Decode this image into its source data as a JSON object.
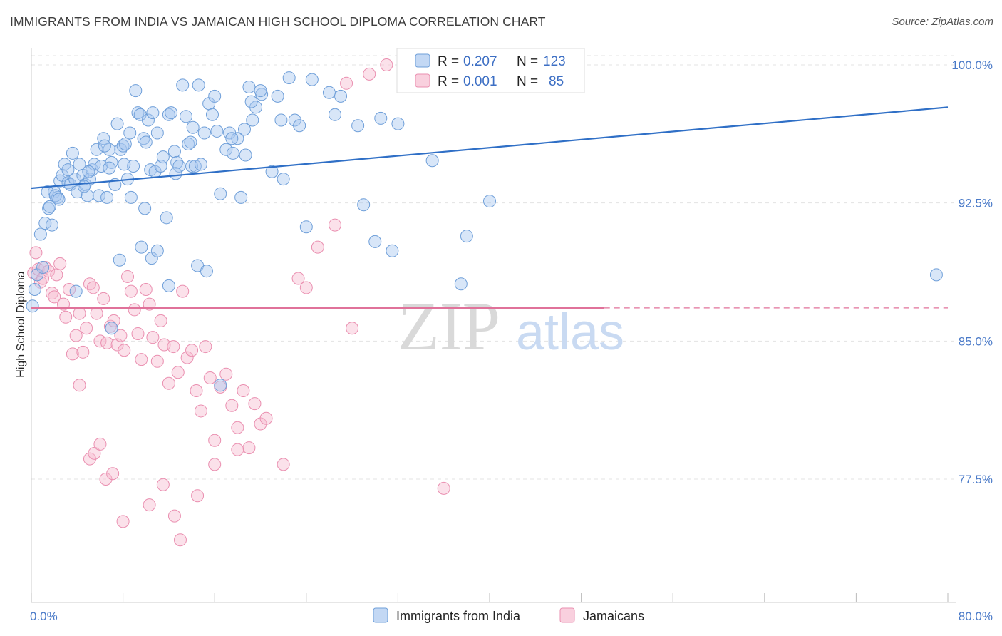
{
  "header": {
    "title": "IMMIGRANTS FROM INDIA VS JAMAICAN HIGH SCHOOL DIPLOMA CORRELATION CHART",
    "source": "Source: ZipAtlas.com"
  },
  "watermark": {
    "zip": "ZIP",
    "atlas": "atlas"
  },
  "colors": {
    "india_fill": "#a9c8f0",
    "india_stroke": "#6f9fd9",
    "india_line": "#2f6fc6",
    "jam_fill": "#f6bcd0",
    "jam_stroke": "#ea8fb0",
    "jam_line": "#e0729a",
    "grid": "#e3e3e3",
    "tick_text": "#4a7ac8"
  },
  "legend": {
    "rows": [
      {
        "r_label": "R =",
        "r_value": "0.207",
        "n_label": "N =",
        "n_value": "123"
      },
      {
        "r_label": "R =",
        "r_value": "0.001",
        "n_label": "N =",
        "n_value": "85"
      }
    ]
  },
  "chart_data": {
    "type": "scatter",
    "ylabel": "High School Diploma",
    "xlim": [
      0,
      80
    ],
    "ylim": [
      70.8,
      101.2
    ],
    "x_tick_labels": [
      "0.0%",
      "80.0%"
    ],
    "y_ticks": [
      {
        "value": 100.0,
        "label": "100.0%"
      },
      {
        "value": 92.5,
        "label": "92.5%"
      },
      {
        "value": 85.0,
        "label": "85.0%"
      },
      {
        "value": 77.5,
        "label": "77.5%"
      }
    ],
    "grid": true,
    "legend_position": "top-center",
    "series": [
      {
        "name": "Immigrants from India",
        "trend": {
          "x": [
            0,
            80
          ],
          "y": [
            93.3,
            97.7
          ]
        },
        "points": [
          [
            0.1,
            86.9
          ],
          [
            0.3,
            87.8
          ],
          [
            0.5,
            88.6
          ],
          [
            0.8,
            90.8
          ],
          [
            1.0,
            89.0
          ],
          [
            1.2,
            91.4
          ],
          [
            1.5,
            92.2
          ],
          [
            1.8,
            91.3
          ],
          [
            1.6,
            92.3
          ],
          [
            2.0,
            93.1
          ],
          [
            2.3,
            92.8
          ],
          [
            2.5,
            93.7
          ],
          [
            2.7,
            94.0
          ],
          [
            2.9,
            94.6
          ],
          [
            3.2,
            93.6
          ],
          [
            3.4,
            93.5
          ],
          [
            3.6,
            95.2
          ],
          [
            3.8,
            93.8
          ],
          [
            4.0,
            93.1
          ],
          [
            4.2,
            94.6
          ],
          [
            4.5,
            94.0
          ],
          [
            4.7,
            93.5
          ],
          [
            4.9,
            92.9
          ],
          [
            5.1,
            93.8
          ],
          [
            5.3,
            94.3
          ],
          [
            5.5,
            94.6
          ],
          [
            5.7,
            95.4
          ],
          [
            5.9,
            92.9
          ],
          [
            6.1,
            94.5
          ],
          [
            6.3,
            96.0
          ],
          [
            6.6,
            92.8
          ],
          [
            6.8,
            95.4
          ],
          [
            7.0,
            94.7
          ],
          [
            7.3,
            93.5
          ],
          [
            7.5,
            96.8
          ],
          [
            7.8,
            95.4
          ],
          [
            8.0,
            95.6
          ],
          [
            8.2,
            95.7
          ],
          [
            8.4,
            93.8
          ],
          [
            8.7,
            92.8
          ],
          [
            8.9,
            94.5
          ],
          [
            9.1,
            98.6
          ],
          [
            9.3,
            97.4
          ],
          [
            9.5,
            97.3
          ],
          [
            9.8,
            96.0
          ],
          [
            10.0,
            95.8
          ],
          [
            10.2,
            97.0
          ],
          [
            10.4,
            94.3
          ],
          [
            10.6,
            97.4
          ],
          [
            10.8,
            94.2
          ],
          [
            11.0,
            96.3
          ],
          [
            11.3,
            94.5
          ],
          [
            11.5,
            95.0
          ],
          [
            11.8,
            91.7
          ],
          [
            12.0,
            97.3
          ],
          [
            12.2,
            97.4
          ],
          [
            12.5,
            95.3
          ],
          [
            12.7,
            94.7
          ],
          [
            12.9,
            94.5
          ],
          [
            13.2,
            98.9
          ],
          [
            13.5,
            97.2
          ],
          [
            13.7,
            95.7
          ],
          [
            14.0,
            94.5
          ],
          [
            14.3,
            94.5
          ],
          [
            14.6,
            98.9
          ],
          [
            14.8,
            94.6
          ],
          [
            15.1,
            96.3
          ],
          [
            15.5,
            97.9
          ],
          [
            15.8,
            97.3
          ],
          [
            16.2,
            96.4
          ],
          [
            16.5,
            93.0
          ],
          [
            17.0,
            95.4
          ],
          [
            17.3,
            96.3
          ],
          [
            17.6,
            95.2
          ],
          [
            18.0,
            96.0
          ],
          [
            18.3,
            92.8
          ],
          [
            18.6,
            96.5
          ],
          [
            19.0,
            98.8
          ],
          [
            19.3,
            97.0
          ],
          [
            19.6,
            97.7
          ],
          [
            20.1,
            98.4
          ],
          [
            21.0,
            94.2
          ],
          [
            21.5,
            98.3
          ],
          [
            22.0,
            93.8
          ],
          [
            23.0,
            97.0
          ],
          [
            23.4,
            96.7
          ],
          [
            24.5,
            99.2
          ],
          [
            26.0,
            98.5
          ],
          [
            27.0,
            98.3
          ],
          [
            28.5,
            96.7
          ],
          [
            29.0,
            92.4
          ],
          [
            30.0,
            90.4
          ],
          [
            31.5,
            89.9
          ],
          [
            32.0,
            96.8
          ],
          [
            35.0,
            94.8
          ],
          [
            38.0,
            90.7
          ],
          [
            40.0,
            92.6
          ],
          [
            8.6,
            96.3
          ],
          [
            3.9,
            87.7
          ],
          [
            4.6,
            93.4
          ],
          [
            1.4,
            93.1
          ],
          [
            2.1,
            92.9
          ],
          [
            5.0,
            94.2
          ],
          [
            6.8,
            94.4
          ],
          [
            2.4,
            92.7
          ],
          [
            12.6,
            94.1
          ],
          [
            9.9,
            92.2
          ],
          [
            13.9,
            95.8
          ],
          [
            7.7,
            89.4
          ],
          [
            10.5,
            89.5
          ],
          [
            17.5,
            96.0
          ],
          [
            18.7,
            95.1
          ],
          [
            24.0,
            91.2
          ],
          [
            37.5,
            88.1
          ],
          [
            79.0,
            88.6
          ],
          [
            16.5,
            82.6
          ],
          [
            14.5,
            89.1
          ],
          [
            11.0,
            89.9
          ],
          [
            6.4,
            95.6
          ],
          [
            8.1,
            94.6
          ],
          [
            15.3,
            88.8
          ],
          [
            9.6,
            90.1
          ],
          [
            12.0,
            88.0
          ],
          [
            14.1,
            96.6
          ],
          [
            7.0,
            85.7
          ],
          [
            3.2,
            94.3
          ],
          [
            22.5,
            99.3
          ],
          [
            20.0,
            98.6
          ],
          [
            19.2,
            98.0
          ],
          [
            26.5,
            97.3
          ],
          [
            30.5,
            97.1
          ],
          [
            16.0,
            98.3
          ],
          [
            21.8,
            97.0
          ]
        ]
      },
      {
        "name": "Jamaicans",
        "trend": {
          "x": [
            0,
            50
          ],
          "y": [
            86.8,
            86.8
          ]
        },
        "points": [
          [
            0.2,
            88.7
          ],
          [
            0.4,
            89.8
          ],
          [
            0.6,
            88.9
          ],
          [
            0.8,
            88.2
          ],
          [
            1.0,
            88.4
          ],
          [
            1.2,
            89.0
          ],
          [
            1.5,
            88.8
          ],
          [
            1.8,
            87.6
          ],
          [
            2.0,
            87.4
          ],
          [
            2.2,
            88.6
          ],
          [
            2.5,
            89.2
          ],
          [
            2.8,
            87.0
          ],
          [
            3.0,
            86.3
          ],
          [
            3.3,
            87.8
          ],
          [
            3.6,
            84.3
          ],
          [
            3.9,
            85.3
          ],
          [
            4.2,
            86.5
          ],
          [
            4.5,
            84.4
          ],
          [
            4.8,
            85.7
          ],
          [
            5.1,
            88.1
          ],
          [
            5.4,
            87.9
          ],
          [
            5.7,
            86.5
          ],
          [
            6.0,
            85.0
          ],
          [
            6.3,
            87.3
          ],
          [
            6.6,
            84.9
          ],
          [
            6.9,
            85.8
          ],
          [
            7.2,
            86.1
          ],
          [
            7.5,
            84.8
          ],
          [
            7.8,
            85.3
          ],
          [
            8.1,
            84.5
          ],
          [
            8.4,
            88.5
          ],
          [
            8.7,
            87.7
          ],
          [
            9.0,
            86.7
          ],
          [
            9.3,
            85.4
          ],
          [
            9.6,
            84.0
          ],
          [
            10.0,
            87.8
          ],
          [
            10.3,
            87.0
          ],
          [
            10.6,
            85.2
          ],
          [
            11.0,
            83.9
          ],
          [
            11.3,
            86.1
          ],
          [
            11.6,
            84.8
          ],
          [
            12.0,
            82.7
          ],
          [
            12.4,
            84.7
          ],
          [
            12.8,
            83.3
          ],
          [
            13.2,
            87.7
          ],
          [
            13.6,
            84.1
          ],
          [
            14.0,
            84.5
          ],
          [
            14.4,
            82.3
          ],
          [
            14.8,
            81.2
          ],
          [
            15.2,
            84.7
          ],
          [
            15.6,
            83.0
          ],
          [
            16.0,
            79.6
          ],
          [
            16.5,
            82.5
          ],
          [
            17.0,
            83.2
          ],
          [
            17.5,
            81.5
          ],
          [
            18.0,
            80.3
          ],
          [
            18.5,
            82.3
          ],
          [
            19.0,
            79.2
          ],
          [
            19.5,
            81.6
          ],
          [
            20.0,
            80.5
          ],
          [
            4.2,
            82.6
          ],
          [
            5.1,
            78.6
          ],
          [
            5.5,
            78.9
          ],
          [
            6.0,
            79.4
          ],
          [
            6.5,
            77.5
          ],
          [
            7.1,
            77.8
          ],
          [
            8.0,
            75.2
          ],
          [
            10.3,
            76.1
          ],
          [
            11.5,
            77.2
          ],
          [
            12.5,
            75.5
          ],
          [
            13.0,
            74.2
          ],
          [
            14.5,
            76.6
          ],
          [
            16.0,
            78.3
          ],
          [
            18.0,
            79.1
          ],
          [
            20.5,
            80.8
          ],
          [
            22.0,
            78.3
          ],
          [
            23.3,
            88.4
          ],
          [
            24.0,
            87.9
          ],
          [
            25.0,
            90.1
          ],
          [
            26.5,
            91.3
          ],
          [
            28.0,
            85.7
          ],
          [
            36.0,
            77.0
          ],
          [
            29.5,
            99.5
          ],
          [
            27.5,
            99.0
          ],
          [
            31.0,
            100.0
          ]
        ]
      }
    ]
  },
  "bottom_legend": {
    "items": [
      {
        "label": "Immigrants from India"
      },
      {
        "label": "Jamaicans"
      }
    ]
  }
}
